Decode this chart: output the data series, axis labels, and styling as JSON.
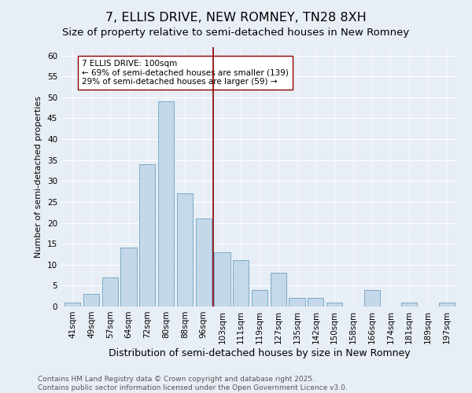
{
  "title": "7, ELLIS DRIVE, NEW ROMNEY, TN28 8XH",
  "subtitle": "Size of property relative to semi-detached houses in New Romney",
  "xlabel": "Distribution of semi-detached houses by size in New Romney",
  "ylabel": "Number of semi-detached properties",
  "bar_labels": [
    "41sqm",
    "49sqm",
    "57sqm",
    "64sqm",
    "72sqm",
    "80sqm",
    "88sqm",
    "96sqm",
    "103sqm",
    "111sqm",
    "119sqm",
    "127sqm",
    "135sqm",
    "142sqm",
    "150sqm",
    "158sqm",
    "166sqm",
    "174sqm",
    "181sqm",
    "189sqm",
    "197sqm"
  ],
  "bar_values": [
    1,
    3,
    7,
    14,
    34,
    49,
    27,
    21,
    13,
    11,
    4,
    8,
    2,
    2,
    1,
    0,
    4,
    0,
    1,
    0,
    1
  ],
  "bar_color": "#c5d8ea",
  "bar_edge_color": "#7aaac8",
  "background_color": "#e8eef5",
  "vline_x_idx": 7.5,
  "vline_color": "#8b0000",
  "annotation_text": "7 ELLIS DRIVE: 100sqm\n← 69% of semi-detached houses are smaller (139)\n29% of semi-detached houses are larger (59) →",
  "annotation_box_color": "white",
  "annotation_box_edge_color": "#8b0000",
  "ylim": [
    0,
    62
  ],
  "yticks": [
    0,
    5,
    10,
    15,
    20,
    25,
    30,
    35,
    40,
    45,
    50,
    55,
    60
  ],
  "footer_text": "Contains HM Land Registry data © Crown copyright and database right 2025.\nContains public sector information licensed under the Open Government Licence v3.0.",
  "title_fontsize": 11.5,
  "xlabel_fontsize": 9,
  "ylabel_fontsize": 8,
  "tick_fontsize": 7.5,
  "annotation_fontsize": 7.5,
  "footer_fontsize": 6.5
}
